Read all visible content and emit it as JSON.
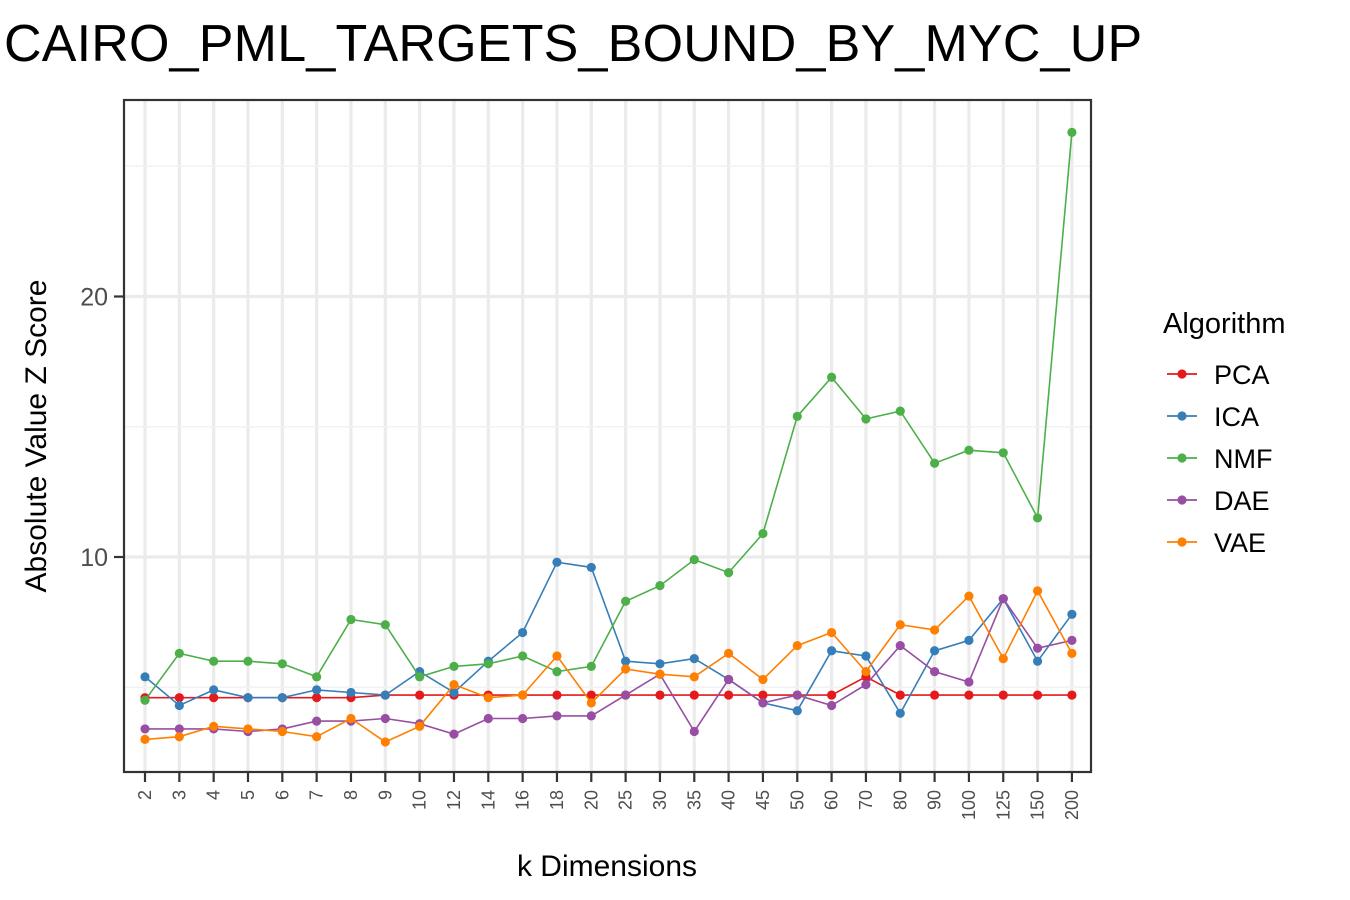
{
  "chart_data": {
    "type": "line",
    "title": "CAIRO_PML_TARGETS_BOUND_BY_MYC_UP",
    "xlabel": "k Dimensions",
    "ylabel": "Absolute Value Z Score",
    "categories": [
      "2",
      "3",
      "4",
      "5",
      "6",
      "7",
      "8",
      "9",
      "10",
      "12",
      "14",
      "16",
      "18",
      "20",
      "25",
      "30",
      "35",
      "40",
      "45",
      "50",
      "60",
      "70",
      "80",
      "90",
      "100",
      "125",
      "150",
      "200"
    ],
    "ylim": [
      1.9,
      27.5
    ],
    "yticks": [
      10,
      20
    ],
    "grid": true,
    "legend": {
      "title": "Algorithm",
      "placement": "right"
    },
    "series": [
      {
        "name": "PCA",
        "color": "#E41A1C",
        "values": [
          4.6,
          4.6,
          4.6,
          4.6,
          4.6,
          4.6,
          4.6,
          4.7,
          4.7,
          4.7,
          4.7,
          4.7,
          4.7,
          4.7,
          4.7,
          4.7,
          4.7,
          4.7,
          4.7,
          4.7,
          4.7,
          5.4,
          4.7,
          4.7,
          4.7,
          4.7,
          4.7,
          4.7
        ]
      },
      {
        "name": "ICA",
        "color": "#377EB8",
        "values": [
          5.4,
          4.3,
          4.9,
          4.6,
          4.6,
          4.9,
          4.8,
          4.7,
          5.6,
          4.8,
          6.0,
          7.1,
          9.8,
          9.6,
          6.0,
          5.9,
          6.1,
          5.3,
          4.4,
          4.1,
          6.4,
          6.2,
          4.0,
          6.4,
          6.8,
          8.4,
          6.0,
          7.8
        ]
      },
      {
        "name": "NMF",
        "color": "#4DAF4A",
        "values": [
          4.5,
          6.3,
          6.0,
          6.0,
          5.9,
          5.4,
          7.6,
          7.4,
          5.4,
          5.8,
          5.9,
          6.2,
          5.6,
          5.8,
          8.3,
          8.9,
          9.9,
          9.4,
          10.9,
          15.4,
          16.9,
          15.3,
          15.6,
          13.6,
          14.1,
          14.0,
          11.5,
          26.3
        ]
      },
      {
        "name": "DAE",
        "color": "#984EA3",
        "values": [
          3.4,
          3.4,
          3.4,
          3.3,
          3.4,
          3.7,
          3.7,
          3.8,
          3.6,
          3.2,
          3.8,
          3.8,
          3.9,
          3.9,
          4.7,
          5.5,
          3.3,
          5.3,
          4.4,
          4.7,
          4.3,
          5.1,
          6.6,
          5.6,
          5.2,
          8.4,
          6.5,
          6.8
        ]
      },
      {
        "name": "VAE",
        "color": "#FF7F00",
        "values": [
          3.0,
          3.1,
          3.5,
          3.4,
          3.3,
          3.1,
          3.8,
          2.9,
          3.5,
          5.1,
          4.6,
          4.7,
          6.2,
          4.4,
          5.7,
          5.5,
          5.4,
          6.3,
          5.3,
          6.6,
          7.1,
          5.6,
          7.4,
          7.2,
          8.5,
          6.1,
          8.7,
          6.3
        ]
      }
    ]
  }
}
